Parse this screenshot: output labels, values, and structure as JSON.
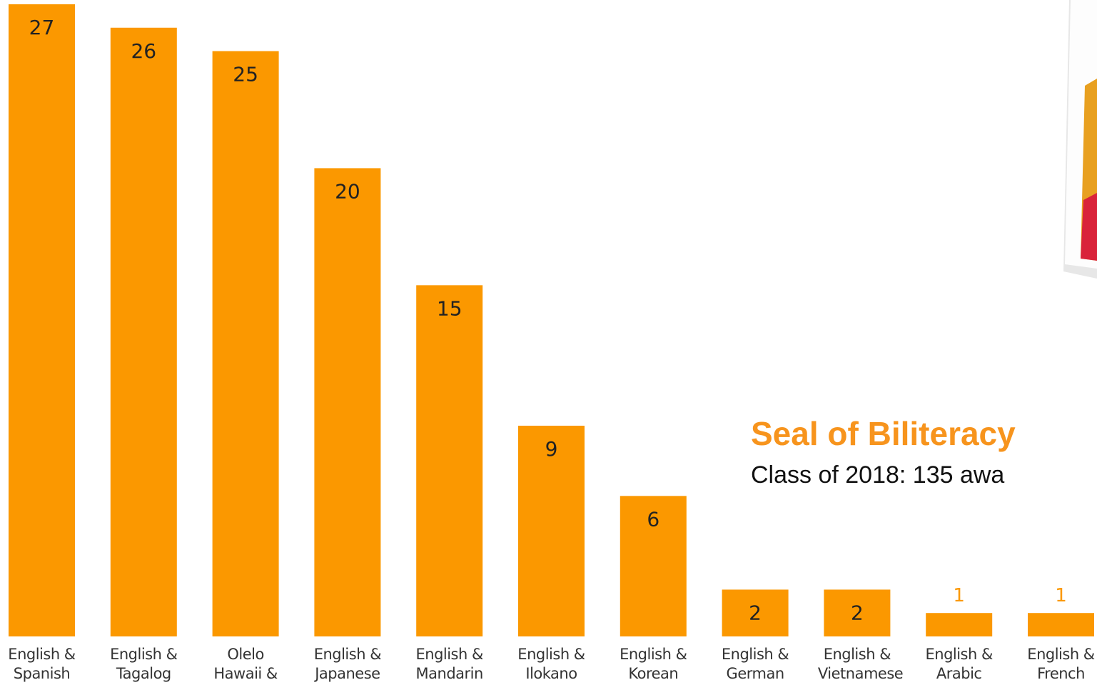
{
  "chart_data": {
    "type": "bar",
    "title": "Seal of Biliteracy",
    "subtitle": "Class of 2018: 135 awa",
    "categories": [
      "English & Spanish",
      "English & Tagalog",
      "Olelo Hawaii & English",
      "English & Japanese",
      "English & Mandarin",
      "English & Ilokano",
      "English & Korean",
      "English & German",
      "English & Vietnamese",
      "English & Arabic",
      "English & French"
    ],
    "values": [
      27,
      26,
      25,
      20,
      15,
      9,
      6,
      2,
      2,
      1,
      1
    ],
    "color": "#fb9800"
  }
}
